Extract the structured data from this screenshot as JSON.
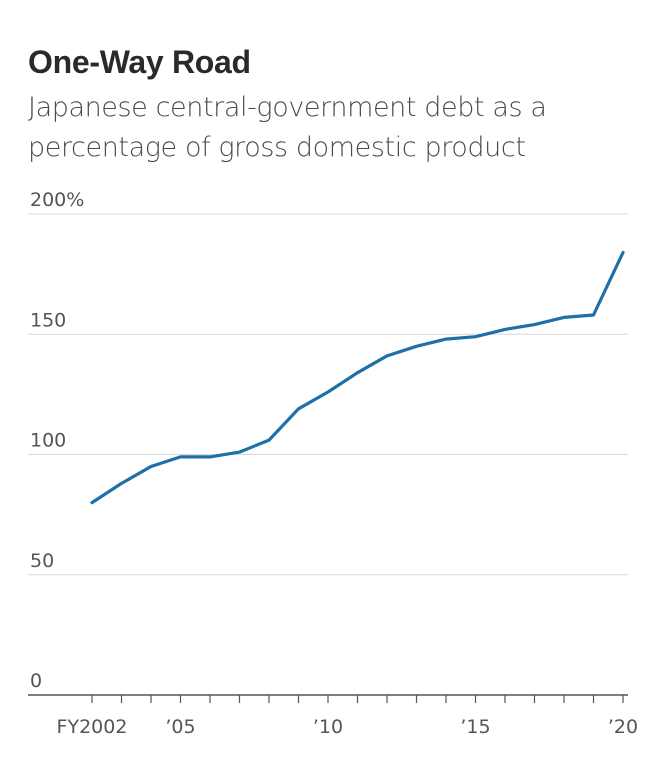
{
  "header": {
    "title": "One-Way Road",
    "subtitle": "Japanese central-government debt as a percentage of gross domestic product"
  },
  "colors": {
    "line": "#1f6fa8",
    "grid": "#d9d9d9",
    "axis": "#555555"
  },
  "chart_data": {
    "type": "line",
    "title": "One-Way Road",
    "subtitle": "Japanese central-government debt as a percentage of gross domestic product",
    "xlabel": "",
    "ylabel": "",
    "x": [
      2002,
      2003,
      2004,
      2005,
      2006,
      2007,
      2008,
      2009,
      2010,
      2011,
      2012,
      2013,
      2014,
      2015,
      2016,
      2017,
      2018,
      2019,
      2020
    ],
    "series": [
      {
        "name": "Central-government debt (% of GDP)",
        "values": [
          80,
          88,
          95,
          99,
          99,
          101,
          106,
          119,
          126,
          134,
          141,
          145,
          148,
          149,
          152,
          154,
          157,
          158,
          184
        ]
      }
    ],
    "xlim": [
      2002,
      2020
    ],
    "ylim": [
      0,
      200
    ],
    "y_ticks": [
      {
        "value": 0,
        "label": "0"
      },
      {
        "value": 50,
        "label": "50"
      },
      {
        "value": 100,
        "label": "100"
      },
      {
        "value": 150,
        "label": "150"
      },
      {
        "value": 200,
        "label": "200%"
      }
    ],
    "x_tick_labels": [
      {
        "value": 2002,
        "label": "FY2002"
      },
      {
        "value": 2005,
        "label": "’05"
      },
      {
        "value": 2010,
        "label": "’10"
      },
      {
        "value": 2015,
        "label": "’15"
      },
      {
        "value": 2020,
        "label": "’20"
      }
    ],
    "grid": true,
    "legend": "none"
  }
}
